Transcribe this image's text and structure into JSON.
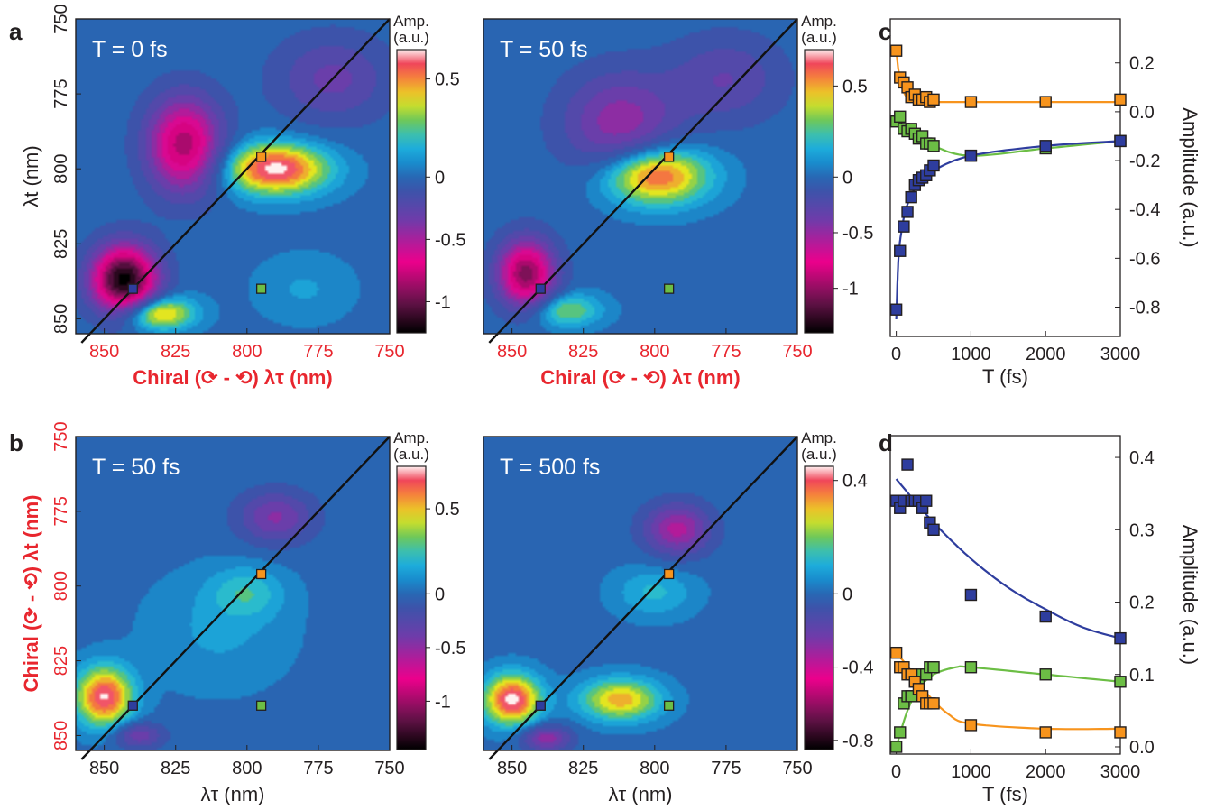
{
  "panel_labels": [
    "a",
    "b",
    "c",
    "d"
  ],
  "chart_data": [
    {
      "id": "a-left",
      "type": "heatmap",
      "title": "T = 0 fs",
      "xlabel": "Chiral (⟳ - ⟲) λτ (nm)",
      "ylabel": "λt (nm)",
      "xlim": [
        860,
        750
      ],
      "ylim": [
        750,
        855
      ],
      "xticks": [
        "850",
        "825",
        "800",
        "775",
        "750"
      ],
      "yticks": [
        "750",
        "775",
        "800",
        "825",
        "850"
      ],
      "colorbar": {
        "title": "Amp.",
        "unit": "(a.u.)",
        "range": [
          -1.25,
          0.65
        ],
        "ticks": [
          "0.5",
          "0",
          "-0.5",
          "-1"
        ]
      },
      "peaks": [
        {
          "x": 843,
          "y": 837,
          "amp": -1.25,
          "sx": 8,
          "sy": 8
        },
        {
          "x": 832,
          "y": 848,
          "amp": 0.55,
          "sx": 9,
          "sy": 4
        },
        {
          "x": 822,
          "y": 792,
          "amp": -0.85,
          "sx": 9,
          "sy": 11
        },
        {
          "x": 790,
          "y": 800,
          "amp": 0.65,
          "sx": 13,
          "sy": 6
        },
        {
          "x": 770,
          "y": 770,
          "amp": -0.3,
          "sx": 14,
          "sy": 10
        },
        {
          "x": 780,
          "y": 840,
          "amp": 0.1,
          "sx": 12,
          "sy": 8
        }
      ],
      "markers": [
        {
          "x": 840,
          "y": 840,
          "color": "#2e3d9e"
        },
        {
          "x": 795,
          "y": 796,
          "color": "#f7941d"
        },
        {
          "x": 795,
          "y": 840,
          "color": "#6cbe45"
        }
      ]
    },
    {
      "id": "a-right",
      "type": "heatmap",
      "title": "T = 50 fs",
      "xlabel": "Chiral (⟳ - ⟲) λτ (nm)",
      "ylabel": "",
      "xlim": [
        860,
        750
      ],
      "ylim": [
        750,
        855
      ],
      "xticks": [
        "850",
        "825",
        "800",
        "775",
        "750"
      ],
      "yticks": [],
      "colorbar": {
        "title": "Amp.",
        "unit": "(a.u.)",
        "range": [
          -1.4,
          0.7
        ],
        "ticks": [
          "0.5",
          "0",
          "-0.5",
          "-1"
        ]
      },
      "peaks": [
        {
          "x": 845,
          "y": 835,
          "amp": -1.05,
          "sx": 7,
          "sy": 8
        },
        {
          "x": 832,
          "y": 847,
          "amp": 0.35,
          "sx": 9,
          "sy": 4
        },
        {
          "x": 800,
          "y": 802,
          "amp": 0.68,
          "sx": 13,
          "sy": 7
        },
        {
          "x": 812,
          "y": 785,
          "amp": -0.5,
          "sx": 14,
          "sy": 12
        },
        {
          "x": 775,
          "y": 770,
          "amp": -0.3,
          "sx": 14,
          "sy": 10
        }
      ],
      "markers": [
        {
          "x": 840,
          "y": 840,
          "color": "#2e3d9e"
        },
        {
          "x": 795,
          "y": 796,
          "color": "#f7941d"
        },
        {
          "x": 795,
          "y": 840,
          "color": "#6cbe45"
        }
      ]
    },
    {
      "id": "b-left",
      "type": "heatmap",
      "title": "T = 50 fs",
      "xlabel": "λτ (nm)",
      "ylabel": "Chiral (⟳ - ⟲) λt (nm)",
      "xlim": [
        860,
        750
      ],
      "ylim": [
        750,
        855
      ],
      "xticks": [
        "850",
        "825",
        "800",
        "775",
        "750"
      ],
      "yticks": [
        "750",
        "775",
        "800",
        "825",
        "850"
      ],
      "colorbar": {
        "title": "Amp.",
        "unit": "(a.u.)",
        "range": [
          -1.45,
          0.75
        ],
        "ticks": [
          "0.5",
          "0",
          "-0.5",
          "-1"
        ]
      },
      "peaks": [
        {
          "x": 850,
          "y": 837,
          "amp": 0.72,
          "sx": 7,
          "sy": 7
        },
        {
          "x": 838,
          "y": 850,
          "amp": -0.4,
          "sx": 6,
          "sy": 3
        },
        {
          "x": 800,
          "y": 802,
          "amp": 0.2,
          "sx": 9,
          "sy": 6
        },
        {
          "x": 810,
          "y": 815,
          "amp": 0.12,
          "sx": 18,
          "sy": 14
        },
        {
          "x": 790,
          "y": 777,
          "amp": -0.45,
          "sx": 9,
          "sy": 6
        }
      ],
      "markers": [
        {
          "x": 840,
          "y": 840,
          "color": "#2e3d9e"
        },
        {
          "x": 795,
          "y": 796,
          "color": "#f7941d"
        },
        {
          "x": 795,
          "y": 840,
          "color": "#6cbe45"
        }
      ]
    },
    {
      "id": "b-right",
      "type": "heatmap",
      "title": "T = 500 fs",
      "xlabel": "λτ (nm)",
      "ylabel": "",
      "xlim": [
        860,
        750
      ],
      "ylim": [
        750,
        855
      ],
      "xticks": [
        "850",
        "825",
        "800",
        "775",
        "750"
      ],
      "yticks": [],
      "colorbar": {
        "title": "Amp.",
        "unit": "(a.u.)",
        "range": [
          -0.85,
          0.45
        ],
        "ticks": [
          "0.4",
          "0",
          "-0.4",
          "-0.8"
        ]
      },
      "peaks": [
        {
          "x": 850,
          "y": 838,
          "amp": 0.45,
          "sx": 7,
          "sy": 6
        },
        {
          "x": 812,
          "y": 838,
          "amp": 0.32,
          "sx": 10,
          "sy": 5
        },
        {
          "x": 838,
          "y": 851,
          "amp": -0.3,
          "sx": 6,
          "sy": 3
        },
        {
          "x": 800,
          "y": 802,
          "amp": 0.12,
          "sx": 10,
          "sy": 6
        },
        {
          "x": 792,
          "y": 781,
          "amp": -0.35,
          "sx": 8,
          "sy": 6
        }
      ],
      "markers": [
        {
          "x": 840,
          "y": 840,
          "color": "#2e3d9e"
        },
        {
          "x": 795,
          "y": 796,
          "color": "#f7941d"
        },
        {
          "x": 795,
          "y": 840,
          "color": "#6cbe45"
        }
      ]
    },
    {
      "id": "c",
      "type": "scatter",
      "title": "",
      "xlabel": "T (fs)",
      "ylabel": "Amplitude (a.u.)",
      "xlim": [
        -80,
        3000
      ],
      "ylim": [
        -0.92,
        0.38
      ],
      "xticks": [
        0,
        1000,
        2000,
        3000
      ],
      "yticks": [
        0.2,
        0.0,
        -0.2,
        -0.4,
        -0.6,
        -0.8
      ],
      "ytick_labels": [
        "0.2",
        "0.0",
        "-0.2",
        "-0.4",
        "-0.6",
        "-0.8"
      ],
      "series": [
        {
          "color": "#f7941d",
          "x": [
            0,
            50,
            100,
            150,
            200,
            250,
            300,
            350,
            400,
            450,
            500,
            1000,
            2000,
            3000
          ],
          "y": [
            0.25,
            0.14,
            0.12,
            0.1,
            0.06,
            0.07,
            0.05,
            0.05,
            0.06,
            0.04,
            0.05,
            0.04,
            0.04,
            0.05
          ],
          "fit": {
            "base": 0.04,
            "amp": 0.21,
            "tau": 60
          }
        },
        {
          "color": "#6cbe45",
          "x": [
            0,
            50,
            100,
            150,
            200,
            250,
            300,
            350,
            400,
            450,
            500,
            1000,
            2000,
            3000
          ],
          "y": [
            -0.04,
            -0.02,
            -0.07,
            -0.08,
            -0.07,
            -0.09,
            -0.11,
            -0.1,
            -0.13,
            -0.13,
            -0.14,
            -0.18,
            -0.15,
            -0.12
          ],
          "fit_points": [
            [
              0,
              -0.03
            ],
            [
              200,
              -0.09
            ],
            [
              500,
              -0.14
            ],
            [
              1000,
              -0.18
            ],
            [
              2000,
              -0.15
            ],
            [
              3000,
              -0.12
            ]
          ]
        },
        {
          "color": "#2e3d9e",
          "x": [
            0,
            50,
            100,
            150,
            200,
            250,
            300,
            350,
            400,
            450,
            500,
            1000,
            2000,
            3000
          ],
          "y": [
            -0.81,
            -0.57,
            -0.47,
            -0.41,
            -0.35,
            -0.3,
            -0.28,
            -0.27,
            -0.26,
            -0.24,
            -0.22,
            -0.18,
            -0.14,
            -0.12
          ],
          "fit_points": [
            [
              0,
              -0.85
            ],
            [
              30,
              -0.6
            ],
            [
              80,
              -0.47
            ],
            [
              150,
              -0.38
            ],
            [
              300,
              -0.29
            ],
            [
              500,
              -0.24
            ],
            [
              1000,
              -0.18
            ],
            [
              2000,
              -0.14
            ],
            [
              3000,
              -0.12
            ]
          ]
        }
      ]
    },
    {
      "id": "d",
      "type": "scatter",
      "title": "",
      "xlabel": "T (fs)",
      "ylabel": "Amplitude (a.u.)",
      "xlim": [
        -80,
        3000
      ],
      "ylim": [
        -0.01,
        0.43
      ],
      "xticks": [
        0,
        1000,
        2000,
        3000
      ],
      "yticks": [
        0.0,
        0.1,
        0.2,
        0.3,
        0.4
      ],
      "ytick_labels": [
        "0.0",
        "0.1",
        "0.2",
        "0.3",
        "0.4"
      ],
      "series": [
        {
          "color": "#2e3d9e",
          "x": [
            0,
            50,
            100,
            150,
            200,
            250,
            300,
            350,
            400,
            450,
            500,
            1000,
            2000,
            3000
          ],
          "y": [
            0.34,
            0.33,
            0.34,
            0.39,
            0.34,
            0.34,
            0.34,
            0.33,
            0.34,
            0.31,
            0.3,
            0.21,
            0.18,
            0.15
          ],
          "fit_points": [
            [
              0,
              0.37
            ],
            [
              500,
              0.31
            ],
            [
              1000,
              0.26
            ],
            [
              1500,
              0.22
            ],
            [
              2000,
              0.19
            ],
            [
              2500,
              0.165
            ],
            [
              3000,
              0.15
            ]
          ]
        },
        {
          "color": "#6cbe45",
          "x": [
            0,
            50,
            100,
            150,
            200,
            250,
            300,
            350,
            400,
            450,
            500,
            1000,
            2000,
            3000
          ],
          "y": [
            0.0,
            0.02,
            0.06,
            0.07,
            0.07,
            0.09,
            0.09,
            0.1,
            0.1,
            0.11,
            0.11,
            0.11,
            0.1,
            0.09
          ],
          "fit_points": [
            [
              0,
              0.0
            ],
            [
              150,
              0.05
            ],
            [
              300,
              0.08
            ],
            [
              500,
              0.1
            ],
            [
              800,
              0.11
            ],
            [
              1000,
              0.11
            ],
            [
              2000,
              0.1
            ],
            [
              3000,
              0.09
            ]
          ]
        },
        {
          "color": "#f7941d",
          "x": [
            0,
            50,
            100,
            150,
            200,
            250,
            300,
            350,
            400,
            450,
            500,
            1000,
            2000,
            3000
          ],
          "y": [
            0.13,
            0.11,
            0.11,
            0.1,
            0.1,
            0.09,
            0.08,
            0.07,
            0.06,
            0.06,
            0.06,
            0.03,
            0.02,
            0.02
          ],
          "fit_points": [
            [
              0,
              0.13
            ],
            [
              200,
              0.105
            ],
            [
              400,
              0.075
            ],
            [
              700,
              0.045
            ],
            [
              1000,
              0.032
            ],
            [
              2000,
              0.025
            ],
            [
              3000,
              0.025
            ]
          ]
        }
      ]
    }
  ]
}
